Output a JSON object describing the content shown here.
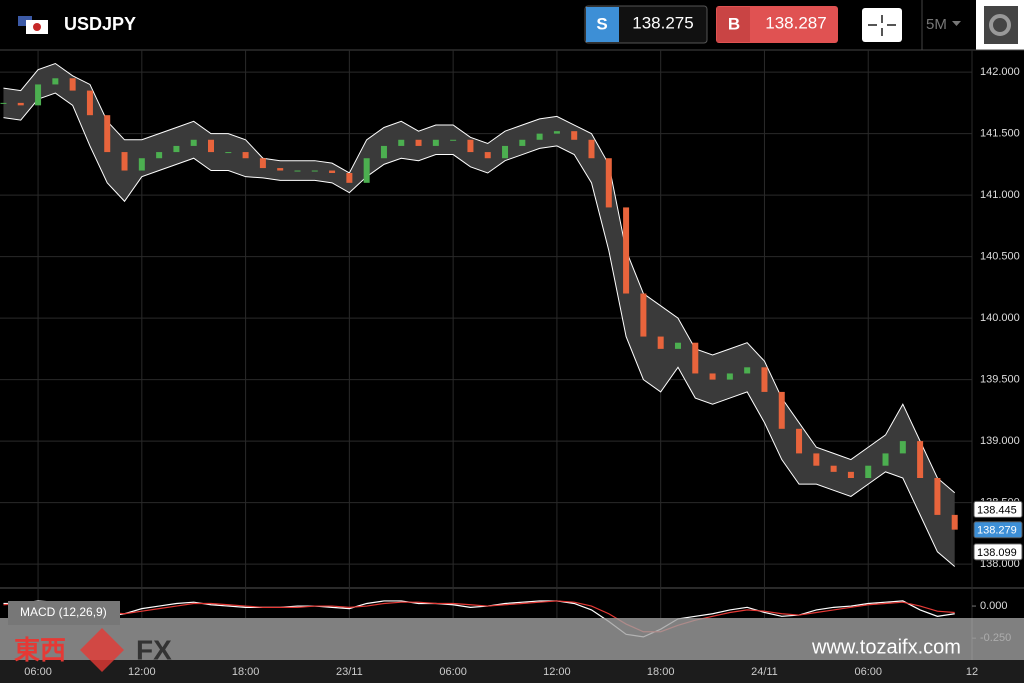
{
  "header": {
    "symbol": "USDJPY",
    "sell_label": "S",
    "sell_price": 138.275,
    "buy_label": "B",
    "buy_price": 138.287,
    "timeframe": "5M"
  },
  "watermark": {
    "brand_cjk": "東西",
    "brand": "FX",
    "url": "www.tozaifx.com"
  },
  "chart_data": [
    {
      "type": "line",
      "x": [
        4,
        5,
        6,
        7,
        8,
        9,
        10,
        11,
        12,
        13,
        14,
        15,
        16,
        17,
        18,
        19,
        20,
        21,
        22,
        23,
        24,
        25,
        26,
        27,
        28,
        29,
        30,
        31,
        32,
        33,
        34,
        35,
        36,
        37,
        38,
        39,
        40,
        41,
        42,
        43,
        44,
        45,
        46,
        47,
        48,
        49,
        50,
        51,
        52,
        53,
        54,
        55,
        56,
        57,
        58,
        59
      ],
      "values": [
        141.75,
        141.73,
        141.9,
        141.95,
        141.85,
        141.65,
        141.35,
        141.2,
        141.3,
        141.35,
        141.4,
        141.45,
        141.35,
        141.35,
        141.3,
        141.22,
        141.2,
        141.2,
        141.2,
        141.18,
        141.1,
        141.3,
        141.4,
        141.45,
        141.4,
        141.45,
        141.45,
        141.35,
        141.3,
        141.4,
        141.45,
        141.5,
        141.52,
        141.45,
        141.3,
        140.9,
        140.2,
        139.85,
        139.75,
        139.8,
        139.55,
        139.5,
        139.55,
        139.6,
        139.4,
        139.1,
        138.9,
        138.8,
        138.75,
        138.7,
        138.8,
        138.9,
        139.0,
        138.7,
        138.4,
        138.28
      ],
      "upper": [
        141.87,
        141.85,
        142.02,
        142.07,
        141.97,
        141.9,
        141.6,
        141.45,
        141.45,
        141.5,
        141.55,
        141.6,
        141.5,
        141.5,
        141.45,
        141.3,
        141.28,
        141.28,
        141.28,
        141.26,
        141.18,
        141.45,
        141.55,
        141.6,
        141.52,
        141.57,
        141.57,
        141.47,
        141.42,
        141.52,
        141.57,
        141.62,
        141.64,
        141.57,
        141.5,
        141.25,
        140.55,
        140.2,
        140.1,
        140.0,
        139.75,
        139.7,
        139.75,
        139.8,
        139.65,
        139.35,
        139.15,
        138.95,
        138.9,
        138.85,
        138.95,
        139.05,
        139.3,
        139.0,
        138.7,
        138.58
      ],
      "lower": [
        141.63,
        141.61,
        141.78,
        141.83,
        141.73,
        141.4,
        141.1,
        140.95,
        141.15,
        141.2,
        141.25,
        141.3,
        141.2,
        141.2,
        141.15,
        141.14,
        141.12,
        141.12,
        141.12,
        141.1,
        141.02,
        141.15,
        141.25,
        141.3,
        141.28,
        141.33,
        141.33,
        141.23,
        141.18,
        141.28,
        141.33,
        141.38,
        141.4,
        141.33,
        141.1,
        140.55,
        139.85,
        139.5,
        139.4,
        139.6,
        139.35,
        139.3,
        139.35,
        139.4,
        139.15,
        138.85,
        138.65,
        138.65,
        138.6,
        138.55,
        138.65,
        138.75,
        138.7,
        138.4,
        138.1,
        137.98
      ],
      "up_color": "#4caf50",
      "down_color": "#e8643c",
      "band_color": "#3a3a3a",
      "xlim": [
        3.8,
        60.0
      ],
      "ylim": [
        137.83,
        142.18
      ],
      "xticks": [
        {
          "value": 6,
          "label": "06:00"
        },
        {
          "value": 12,
          "label": "12:00"
        },
        {
          "value": 18,
          "label": "18:00"
        },
        {
          "value": 24,
          "label": "23/11"
        },
        {
          "value": 30,
          "label": "06:00"
        },
        {
          "value": 36,
          "label": "12:00"
        },
        {
          "value": 42,
          "label": "18:00"
        },
        {
          "value": 48,
          "label": "24/11"
        },
        {
          "value": 54,
          "label": "06:00"
        },
        {
          "value": 60,
          "label": "12"
        }
      ],
      "yticks": [
        {
          "value": 142,
          "label": "142.000"
        },
        {
          "value": 141.5,
          "label": "141.500"
        },
        {
          "value": 141,
          "label": "141.000"
        },
        {
          "value": 140.5,
          "label": "140.500"
        },
        {
          "value": 140,
          "label": "140.000"
        },
        {
          "value": 139.5,
          "label": "139.500"
        },
        {
          "value": 139,
          "label": "139.000"
        },
        {
          "value": 138.5,
          "label": "138.500"
        },
        {
          "value": 138,
          "label": "138.000"
        }
      ],
      "markers": [
        138.445,
        138.279,
        138.099
      ],
      "grid": true
    },
    {
      "type": "line",
      "title": "MACD (12,26,9)",
      "x": [
        4,
        5,
        6,
        7,
        8,
        9,
        10,
        11,
        12,
        13,
        14,
        15,
        16,
        17,
        18,
        19,
        20,
        21,
        22,
        23,
        24,
        25,
        26,
        27,
        28,
        29,
        30,
        31,
        32,
        33,
        34,
        35,
        36,
        37,
        38,
        39,
        40,
        41,
        42,
        43,
        44,
        45,
        46,
        47,
        48,
        49,
        50,
        51,
        52,
        53,
        54,
        55,
        56,
        57,
        58,
        59
      ],
      "series": [
        {
          "color": "#ffffff",
          "values": [
            0.02,
            0.02,
            0.04,
            0.03,
            0.0,
            -0.05,
            -0.08,
            -0.06,
            -0.02,
            0.0,
            0.02,
            0.03,
            0.01,
            0.0,
            -0.01,
            -0.01,
            -0.01,
            0.0,
            0.0,
            -0.01,
            -0.02,
            0.02,
            0.04,
            0.04,
            0.02,
            0.02,
            0.01,
            -0.01,
            0.0,
            0.02,
            0.03,
            0.04,
            0.04,
            0.02,
            -0.03,
            -0.12,
            -0.22,
            -0.24,
            -0.18,
            -0.1,
            -0.08,
            -0.06,
            -0.03,
            -0.01,
            -0.05,
            -0.08,
            -0.07,
            -0.03,
            -0.01,
            0.0,
            0.02,
            0.03,
            0.04,
            -0.03,
            -0.08,
            -0.06
          ]
        },
        {
          "color": "#e53935",
          "values": [
            0.01,
            0.02,
            0.03,
            0.03,
            0.02,
            -0.01,
            -0.05,
            -0.06,
            -0.04,
            -0.02,
            0.0,
            0.02,
            0.02,
            0.01,
            0.0,
            -0.01,
            -0.01,
            -0.01,
            0.0,
            0.0,
            -0.01,
            0.0,
            0.02,
            0.03,
            0.03,
            0.02,
            0.02,
            0.01,
            0.0,
            0.01,
            0.02,
            0.03,
            0.04,
            0.03,
            0.0,
            -0.06,
            -0.14,
            -0.2,
            -0.2,
            -0.15,
            -0.11,
            -0.08,
            -0.05,
            -0.03,
            -0.04,
            -0.06,
            -0.07,
            -0.05,
            -0.03,
            -0.01,
            0.01,
            0.02,
            0.03,
            0.0,
            -0.04,
            -0.05
          ]
        }
      ],
      "xlim": [
        3.8,
        60.0
      ],
      "ylim": [
        -0.42,
        0.125
      ],
      "yticks": [
        {
          "value": 0,
          "label": "0.000"
        },
        {
          "value": -0.25,
          "label": "-0.250"
        }
      ]
    }
  ]
}
